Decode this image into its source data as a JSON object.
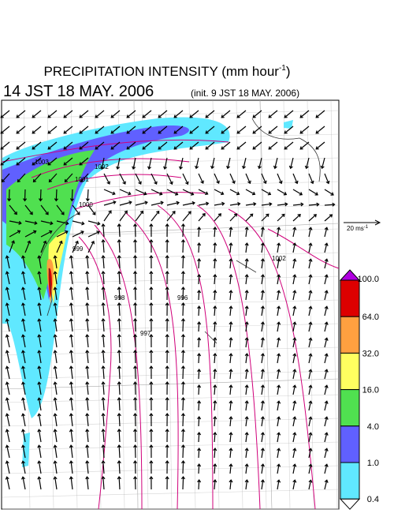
{
  "header": {
    "title": "PRECIPITATION INTENSITY (mm hour",
    "title_sup": "-1",
    "title_end": ")",
    "valid_time": "14 JST 18 MAY. 2006",
    "init_time": "(init. 9 JST 18 MAY. 2006)"
  },
  "wind_scale": {
    "label": "20 ms",
    "label_sup": "-1"
  },
  "legend": {
    "labels": [
      "100.0",
      "64.0",
      "32.0",
      "16.0",
      "4.0",
      "1.0",
      "0.4"
    ],
    "colors": [
      "#dd0000",
      "#ffa040",
      "#ffff60",
      "#50e050",
      "#6060ff",
      "#60e8ff"
    ],
    "over_color": "#b000e0",
    "under_color": "#ffffff"
  },
  "contour_labels": [
    "1003",
    "1002",
    "1001",
    "1000",
    "999",
    "998",
    "997",
    "996",
    "1002"
  ]
}
